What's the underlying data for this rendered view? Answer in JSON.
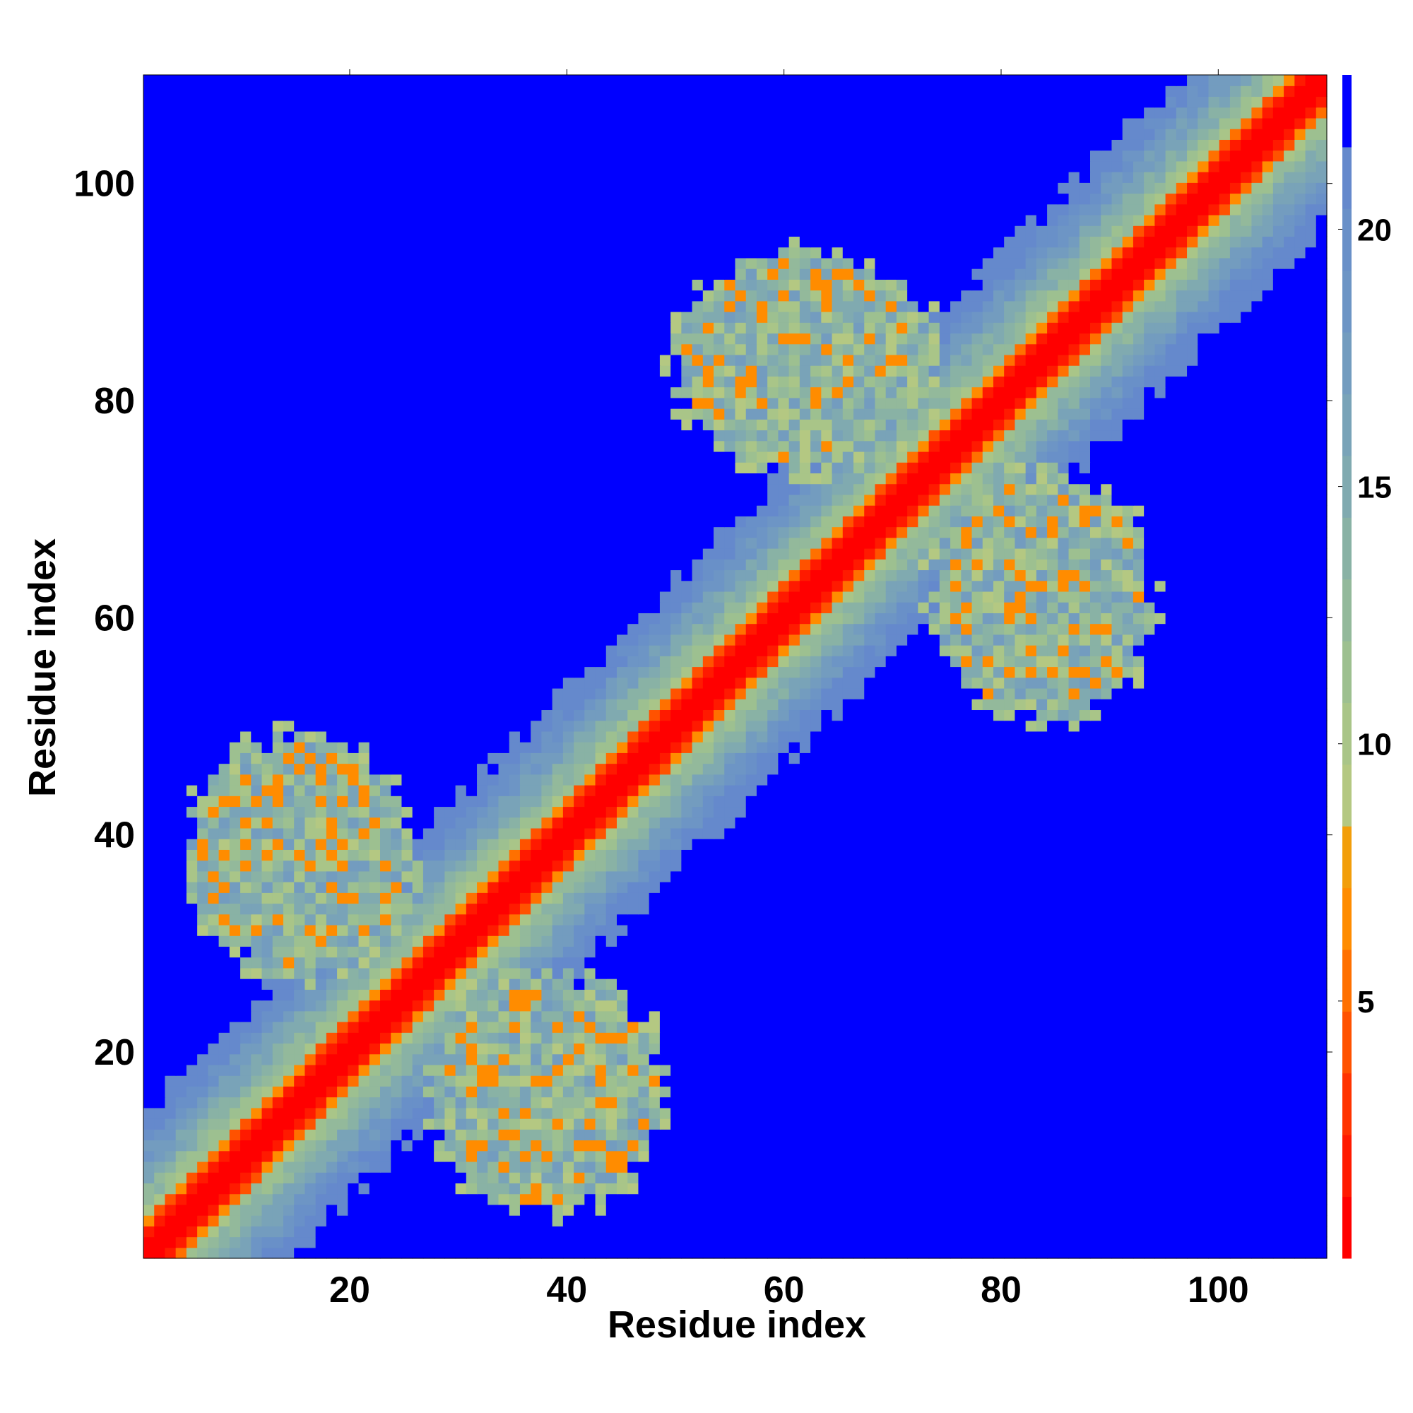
{
  "chart_data": {
    "type": "heatmap",
    "title": "",
    "xlabel": "Residue index",
    "ylabel": "Residue index",
    "n_residues": 110,
    "xlim": [
      1,
      110
    ],
    "ylim": [
      1,
      110
    ],
    "xticks": [
      20,
      40,
      60,
      80,
      100
    ],
    "yticks": [
      20,
      40,
      60,
      80,
      100
    ],
    "colorbar": {
      "ticks": [
        5,
        10,
        15,
        20
      ],
      "range": [
        0,
        23
      ],
      "bins": [
        {
          "from": 0,
          "to": 1.2,
          "color": "#ff0000"
        },
        {
          "from": 1.2,
          "to": 2.4,
          "color": "#ff1a00"
        },
        {
          "from": 2.4,
          "to": 3.6,
          "color": "#ff3300"
        },
        {
          "from": 3.6,
          "to": 4.8,
          "color": "#ff5200"
        },
        {
          "from": 4.8,
          "to": 6.0,
          "color": "#ff7000"
        },
        {
          "from": 6.0,
          "to": 7.2,
          "color": "#ff8c00"
        },
        {
          "from": 7.2,
          "to": 8.4,
          "color": "#f29e0a"
        },
        {
          "from": 8.4,
          "to": 9.6,
          "color": "#b4c882"
        },
        {
          "from": 9.6,
          "to": 10.8,
          "color": "#a9c588"
        },
        {
          "from": 10.8,
          "to": 12.0,
          "color": "#9dc090"
        },
        {
          "from": 12.0,
          "to": 13.2,
          "color": "#93b99b"
        },
        {
          "from": 13.2,
          "to": 14.4,
          "color": "#89b2a5"
        },
        {
          "from": 14.4,
          "to": 15.6,
          "color": "#80aab0"
        },
        {
          "from": 15.6,
          "to": 16.8,
          "color": "#79a3b8"
        },
        {
          "from": 16.8,
          "to": 18.0,
          "color": "#739cbf"
        },
        {
          "from": 18.0,
          "to": 19.2,
          "color": "#6d95c5"
        },
        {
          "from": 19.2,
          "to": 20.4,
          "color": "#6990c8"
        },
        {
          "from": 20.4,
          "to": 21.6,
          "color": "#6589cc"
        },
        {
          "from": 21.6,
          "to": 23.0,
          "color": "#0000ff"
        }
      ]
    },
    "description_values": {
      "diagonal_value": 0.5,
      "background_value": 22.5,
      "band_width_residues": 12,
      "contact_regions": [
        {
          "x_range": [
            5,
            28
          ],
          "y_range": [
            26,
            50
          ],
          "center": [
            15,
            38
          ]
        },
        {
          "x_range": [
            27,
            50
          ],
          "y_range": [
            4,
            28
          ],
          "center": [
            38,
            16
          ]
        },
        {
          "x_range": [
            49,
            75
          ],
          "y_range": [
            73,
            95
          ],
          "center": [
            62,
            84
          ]
        },
        {
          "x_range": [
            73,
            95
          ],
          "y_range": [
            50,
            75
          ],
          "center": [
            84,
            62
          ]
        }
      ]
    }
  }
}
